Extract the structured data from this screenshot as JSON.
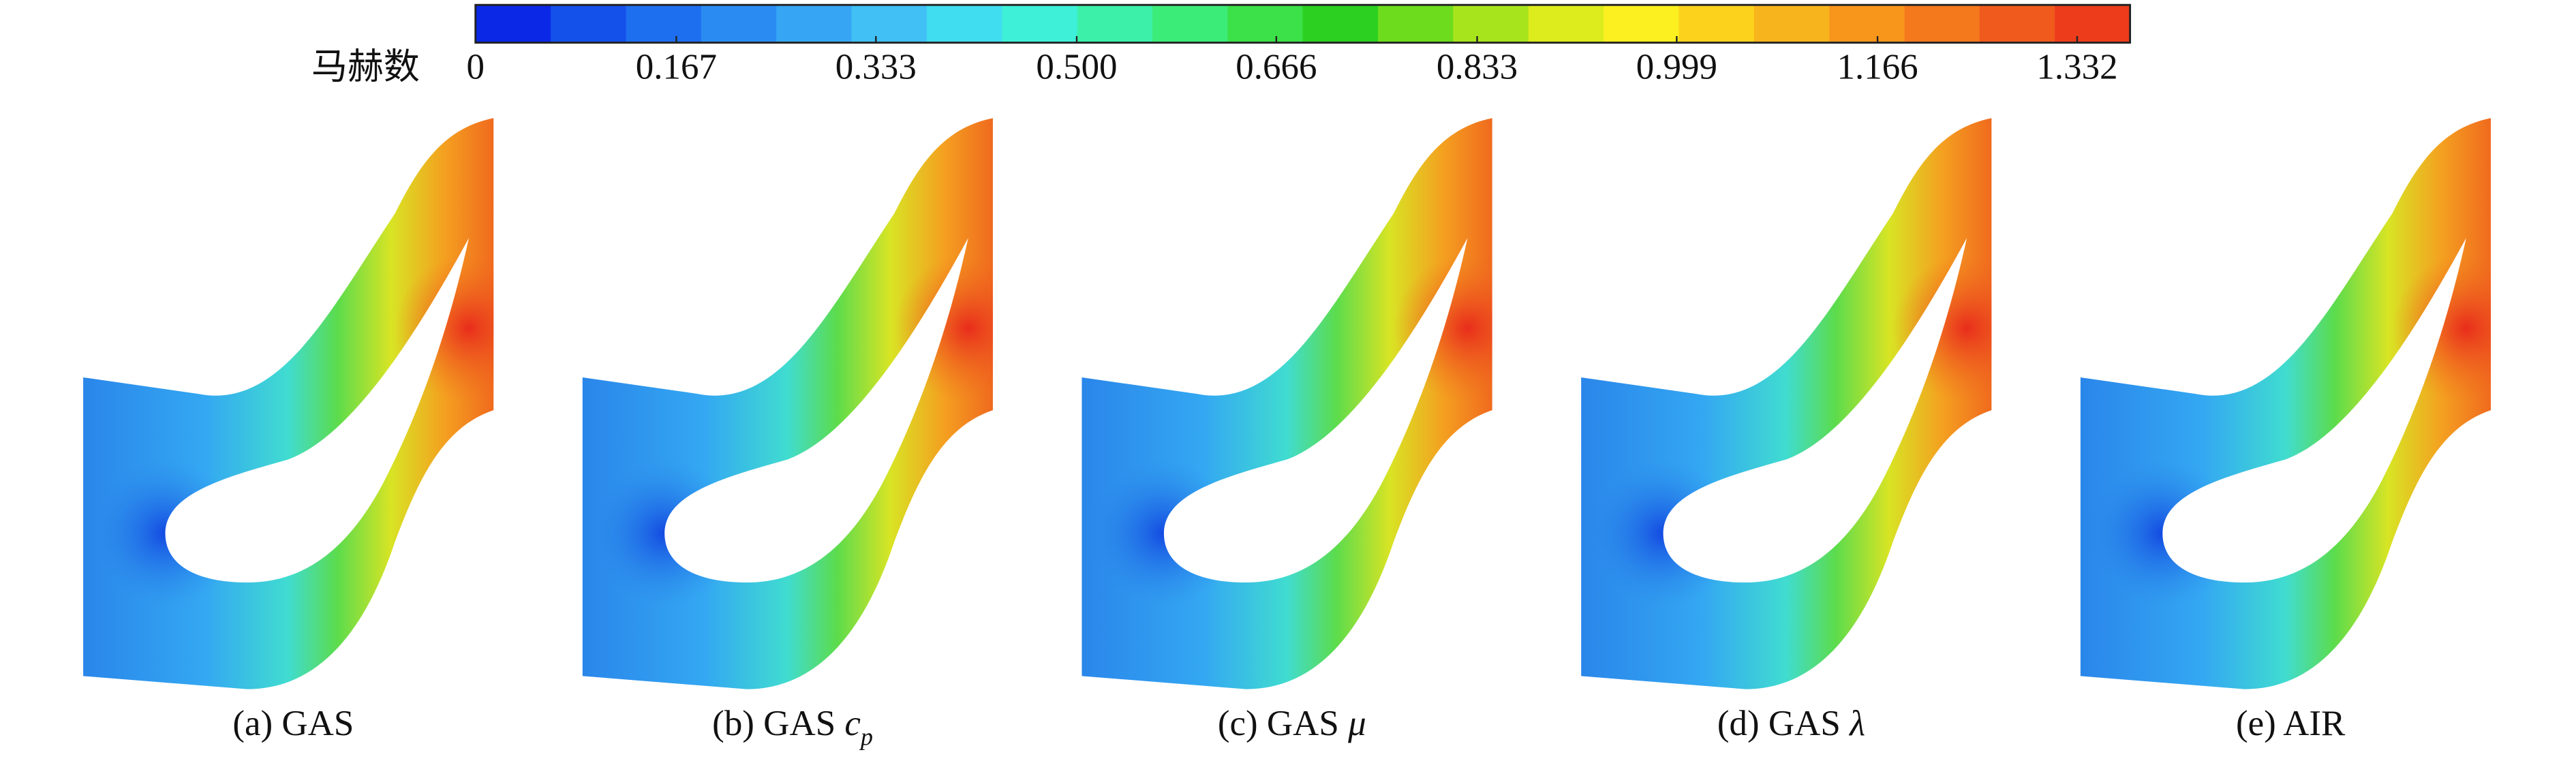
{
  "chart_data": {
    "type": "contour",
    "colorbar": {
      "label": "马赫数",
      "clim": [
        0,
        1.376
      ],
      "ticks": [
        0,
        0.167,
        0.333,
        {
          "value": 0.5,
          "label": "0.500"
        },
        0.666,
        0.833,
        0.999,
        1.166,
        1.332
      ],
      "colors": [
        "#0a28e6",
        "#1450ea",
        "#1e6ef0",
        "#2a8cf2",
        "#36a6f4",
        "#40c0f4",
        "#40dcf0",
        "#3ef0d8",
        "#3cf0aa",
        "#3cec78",
        "#3ce048",
        "#2cd020",
        "#6cdc1c",
        "#a8e41c",
        "#dcec1c",
        "#fcf020",
        "#fcd21c",
        "#f8b41c",
        "#f8961c",
        "#f4781c",
        "#f05a1c",
        "#ec3c1c"
      ]
    },
    "panels": [
      {
        "label": "(a) GAS"
      },
      {
        "label": "(b) GAS",
        "symbol": "c",
        "subscript": "p"
      },
      {
        "label": "(c) GAS",
        "symbol": "μ"
      },
      {
        "label": "(d) GAS",
        "symbol": "λ"
      },
      {
        "label": "(e) AIR"
      }
    ]
  }
}
